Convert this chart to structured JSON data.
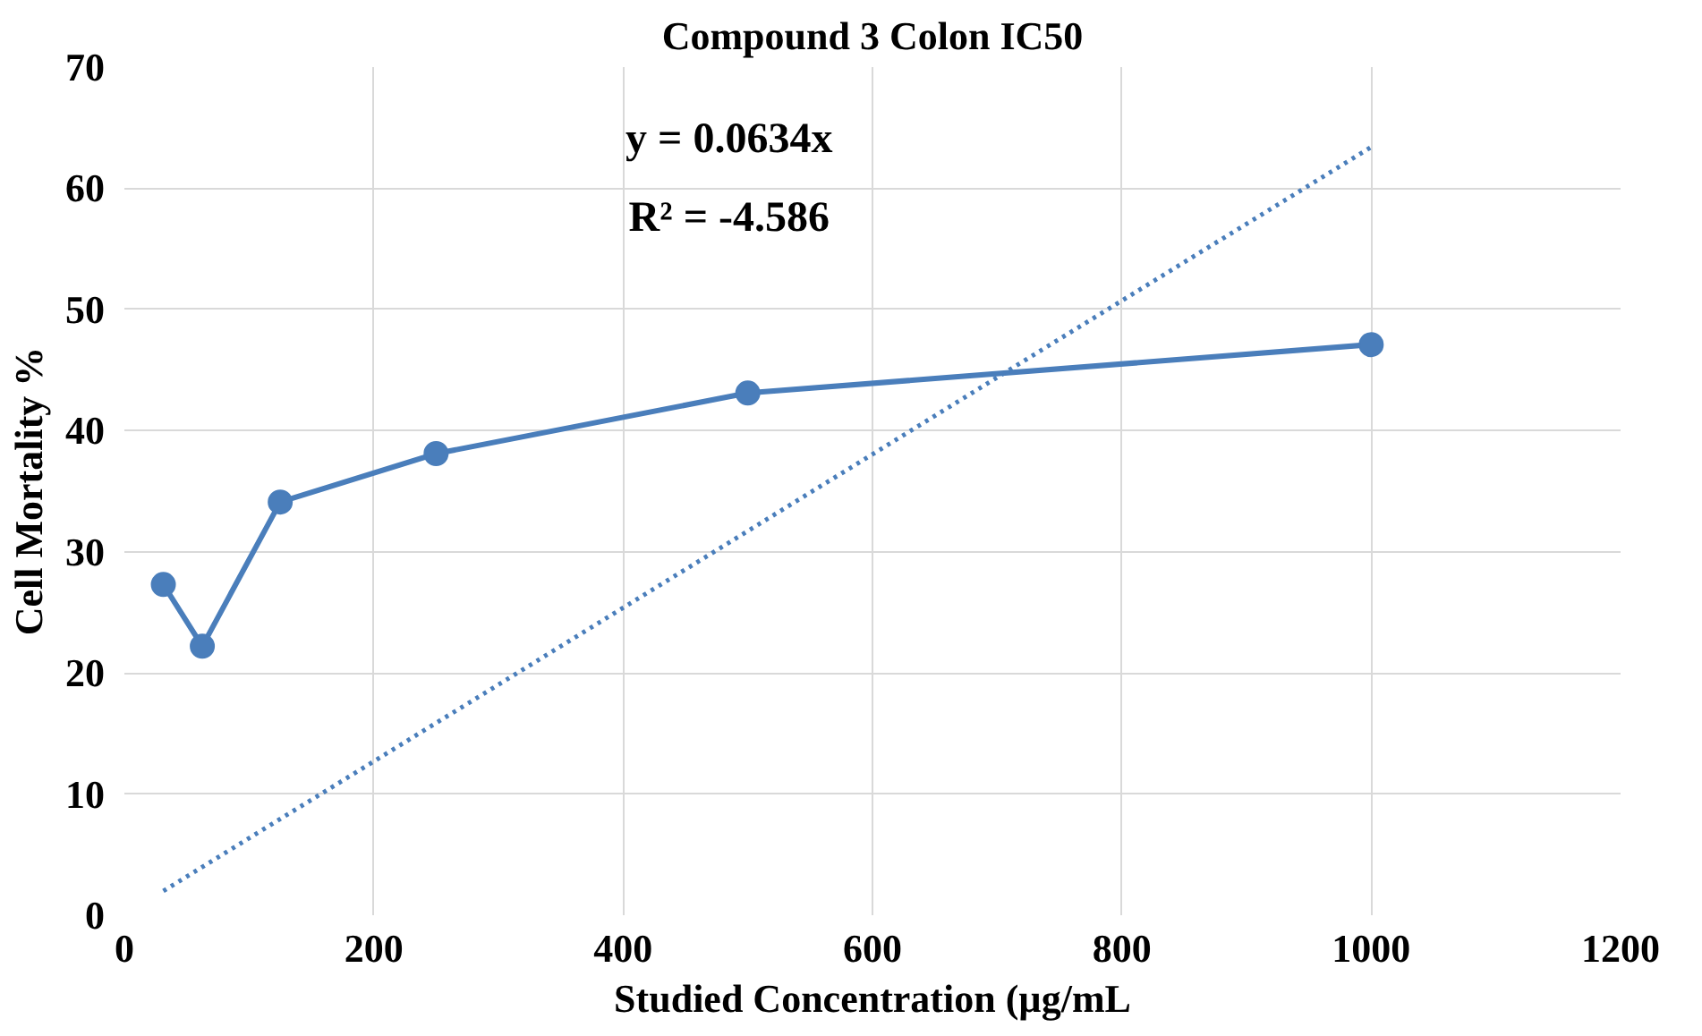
{
  "chart_data": {
    "type": "line",
    "title": "Compound 3 Colon IC50",
    "xlabel": "Studied Concentration (µg/mL",
    "ylabel": "Cell Mortality %",
    "xlim": [
      0,
      1200
    ],
    "xticks": [
      0,
      200,
      400,
      600,
      800,
      1000,
      1200
    ],
    "ylim": [
      0,
      70
    ],
    "yticks": [
      0,
      10,
      20,
      30,
      40,
      50,
      60,
      70
    ],
    "grid": true,
    "annotations": [
      "y = 0.0634x",
      "R² = -4.586"
    ],
    "series": [
      {
        "color": "#4a7ebb",
        "marker": "circle",
        "line_style": "solid",
        "x": [
          31.25,
          62.5,
          125,
          250,
          500,
          1000
        ],
        "values": [
          27.3,
          22.2,
          34.1,
          38.1,
          43.1,
          47.1
        ]
      },
      {
        "color": "#4a7ebb",
        "marker": "none",
        "line_style": "dotted",
        "x": [
          31.25,
          1000
        ],
        "values": [
          2,
          63.4
        ]
      }
    ]
  }
}
